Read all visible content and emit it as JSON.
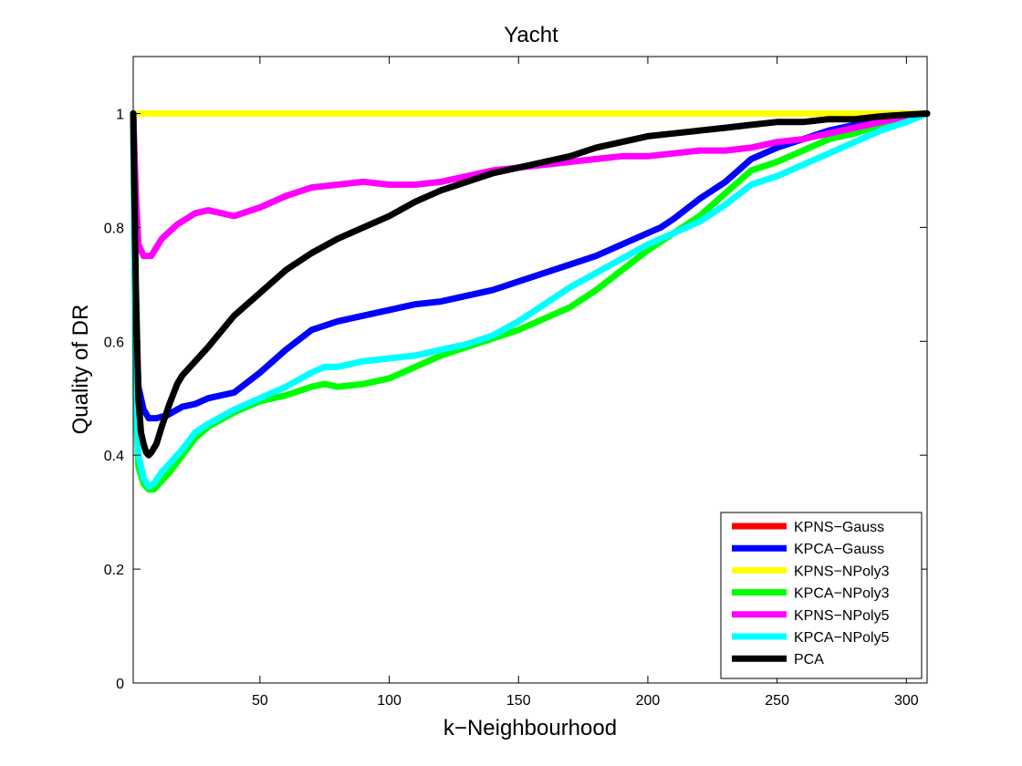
{
  "chart_data": {
    "type": "line",
    "title": "Yacht",
    "xlabel": "k−Neighbourhood",
    "ylabel": "Quality of DR",
    "xlim": [
      1,
      308
    ],
    "ylim": [
      0,
      1.1
    ],
    "xticks": [
      50,
      100,
      150,
      200,
      250,
      300
    ],
    "yticks": [
      0,
      0.2,
      0.4,
      0.6,
      0.8,
      1
    ],
    "legend_position": "bottom-right",
    "grid": false,
    "series": [
      {
        "name": "KPNS−Gauss",
        "color": "#ff0000",
        "x": [
          1,
          308
        ],
        "y": [
          1.0,
          1.0
        ]
      },
      {
        "name": "KPCA−Gauss",
        "color": "#0000ff",
        "x": [
          1,
          2,
          3,
          5,
          7,
          10,
          14,
          20,
          25,
          30,
          40,
          50,
          60,
          70,
          80,
          90,
          100,
          110,
          120,
          130,
          140,
          150,
          160,
          170,
          180,
          190,
          200,
          205,
          210,
          220,
          230,
          240,
          250,
          260,
          270,
          280,
          290,
          300,
          308
        ],
        "y": [
          1.0,
          0.65,
          0.52,
          0.48,
          0.465,
          0.465,
          0.47,
          0.485,
          0.49,
          0.5,
          0.51,
          0.545,
          0.585,
          0.62,
          0.635,
          0.645,
          0.655,
          0.665,
          0.67,
          0.68,
          0.69,
          0.705,
          0.72,
          0.735,
          0.75,
          0.77,
          0.79,
          0.8,
          0.815,
          0.85,
          0.88,
          0.92,
          0.94,
          0.955,
          0.97,
          0.98,
          0.99,
          0.995,
          1.0
        ]
      },
      {
        "name": "KPNS−NPoly3",
        "color": "#ffff00",
        "x": [
          1,
          308
        ],
        "y": [
          1.0,
          1.0
        ]
      },
      {
        "name": "KPCA−NPoly3",
        "color": "#00ff00",
        "x": [
          1,
          2,
          3,
          5,
          7,
          9,
          12,
          15,
          20,
          25,
          30,
          40,
          50,
          60,
          70,
          75,
          80,
          90,
          100,
          110,
          120,
          130,
          140,
          150,
          160,
          170,
          180,
          190,
          200,
          210,
          220,
          230,
          240,
          250,
          260,
          270,
          280,
          290,
          300,
          308
        ],
        "y": [
          1.0,
          0.5,
          0.38,
          0.35,
          0.34,
          0.34,
          0.355,
          0.37,
          0.4,
          0.43,
          0.45,
          0.475,
          0.495,
          0.505,
          0.52,
          0.525,
          0.52,
          0.525,
          0.535,
          0.555,
          0.575,
          0.59,
          0.605,
          0.62,
          0.64,
          0.66,
          0.69,
          0.725,
          0.76,
          0.79,
          0.82,
          0.86,
          0.9,
          0.915,
          0.935,
          0.955,
          0.965,
          0.98,
          0.99,
          1.0
        ]
      },
      {
        "name": "KPNS−NPoly5",
        "color": "#ff00ff",
        "x": [
          1,
          2,
          3,
          5,
          8,
          12,
          18,
          25,
          30,
          40,
          50,
          60,
          70,
          80,
          90,
          100,
          110,
          120,
          130,
          140,
          150,
          160,
          170,
          180,
          190,
          200,
          210,
          220,
          230,
          240,
          250,
          260,
          270,
          280,
          290,
          300,
          308
        ],
        "y": [
          1.0,
          0.86,
          0.77,
          0.75,
          0.75,
          0.78,
          0.805,
          0.825,
          0.83,
          0.82,
          0.835,
          0.855,
          0.87,
          0.875,
          0.88,
          0.875,
          0.875,
          0.88,
          0.89,
          0.9,
          0.905,
          0.91,
          0.915,
          0.92,
          0.925,
          0.925,
          0.93,
          0.935,
          0.935,
          0.94,
          0.95,
          0.955,
          0.965,
          0.975,
          0.985,
          0.995,
          1.0
        ]
      },
      {
        "name": "KPCA−NPoly5",
        "color": "#00ffff",
        "x": [
          1,
          2,
          3,
          5,
          7,
          9,
          12,
          15,
          20,
          25,
          30,
          40,
          50,
          60,
          70,
          75,
          80,
          90,
          100,
          110,
          120,
          130,
          140,
          150,
          160,
          170,
          180,
          190,
          200,
          210,
          220,
          230,
          240,
          250,
          260,
          270,
          280,
          290,
          300,
          308
        ],
        "y": [
          1.0,
          0.52,
          0.4,
          0.36,
          0.345,
          0.35,
          0.37,
          0.385,
          0.41,
          0.44,
          0.455,
          0.48,
          0.5,
          0.52,
          0.545,
          0.555,
          0.555,
          0.565,
          0.57,
          0.575,
          0.585,
          0.595,
          0.61,
          0.635,
          0.665,
          0.695,
          0.72,
          0.745,
          0.77,
          0.79,
          0.81,
          0.84,
          0.875,
          0.89,
          0.91,
          0.93,
          0.95,
          0.97,
          0.985,
          1.0
        ]
      },
      {
        "name": "PCA",
        "color": "#000000",
        "x": [
          1,
          2,
          3,
          4,
          5,
          6,
          7,
          8,
          10,
          12,
          15,
          18,
          20,
          25,
          30,
          40,
          50,
          60,
          70,
          80,
          90,
          100,
          110,
          120,
          130,
          140,
          150,
          160,
          170,
          180,
          190,
          200,
          210,
          220,
          230,
          240,
          250,
          260,
          270,
          280,
          290,
          300,
          308
        ],
        "y": [
          1.0,
          0.7,
          0.5,
          0.44,
          0.42,
          0.405,
          0.4,
          0.405,
          0.42,
          0.45,
          0.49,
          0.525,
          0.54,
          0.565,
          0.59,
          0.645,
          0.685,
          0.725,
          0.755,
          0.78,
          0.8,
          0.82,
          0.845,
          0.865,
          0.88,
          0.895,
          0.905,
          0.915,
          0.925,
          0.94,
          0.95,
          0.96,
          0.965,
          0.97,
          0.975,
          0.98,
          0.985,
          0.985,
          0.99,
          0.99,
          0.995,
          0.998,
          1.0
        ]
      }
    ]
  }
}
